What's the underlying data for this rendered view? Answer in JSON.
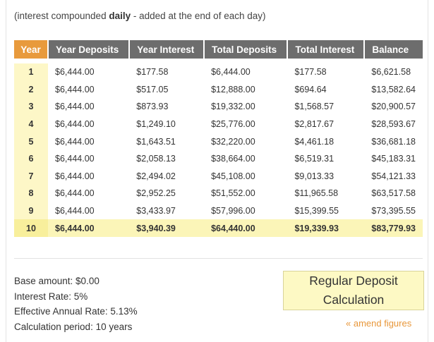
{
  "note": {
    "prefix": "(interest compounded ",
    "emphasis": "daily",
    "suffix": " - added at the end of each day)"
  },
  "table": {
    "headers": [
      "Year",
      "Year Deposits",
      "Year Interest",
      "Total Deposits",
      "Total Interest",
      "Balance"
    ],
    "rows": [
      [
        "1",
        "$6,444.00",
        "$177.58",
        "$6,444.00",
        "$177.58",
        "$6,621.58"
      ],
      [
        "2",
        "$6,444.00",
        "$517.05",
        "$12,888.00",
        "$694.64",
        "$13,582.64"
      ],
      [
        "3",
        "$6,444.00",
        "$873.93",
        "$19,332.00",
        "$1,568.57",
        "$20,900.57"
      ],
      [
        "4",
        "$6,444.00",
        "$1,249.10",
        "$25,776.00",
        "$2,817.67",
        "$28,593.67"
      ],
      [
        "5",
        "$6,444.00",
        "$1,643.51",
        "$32,220.00",
        "$4,461.18",
        "$36,681.18"
      ],
      [
        "6",
        "$6,444.00",
        "$2,058.13",
        "$38,664.00",
        "$6,519.31",
        "$45,183.31"
      ],
      [
        "7",
        "$6,444.00",
        "$2,494.02",
        "$45,108.00",
        "$9,013.33",
        "$54,121.33"
      ],
      [
        "8",
        "$6,444.00",
        "$2,952.25",
        "$51,552.00",
        "$11,965.58",
        "$63,517.58"
      ],
      [
        "9",
        "$6,444.00",
        "$3,433.97",
        "$57,996.00",
        "$15,399.55",
        "$73,395.55"
      ],
      [
        "10",
        "$6,444.00",
        "$3,940.39",
        "$64,440.00",
        "$19,339.93",
        "$83,779.93"
      ]
    ]
  },
  "summary": {
    "base_amount": "Base amount: $0.00",
    "interest_rate": "Interest Rate: 5%",
    "effective_rate": "Effective Annual Rate: 5.13%",
    "period": "Calculation period: 10 years"
  },
  "badge": {
    "line1": "Regular Deposit",
    "line2": "Calculation"
  },
  "amend_link": "« amend figures",
  "colors": {
    "header_bg": "#6d6d6d",
    "year_header_bg": "#e89a3c",
    "year_cell_bg": "#fdf7c7",
    "total_row_bg": "#fbf5b8",
    "badge_bg": "#fdf9c4",
    "link": "#e8973a"
  }
}
